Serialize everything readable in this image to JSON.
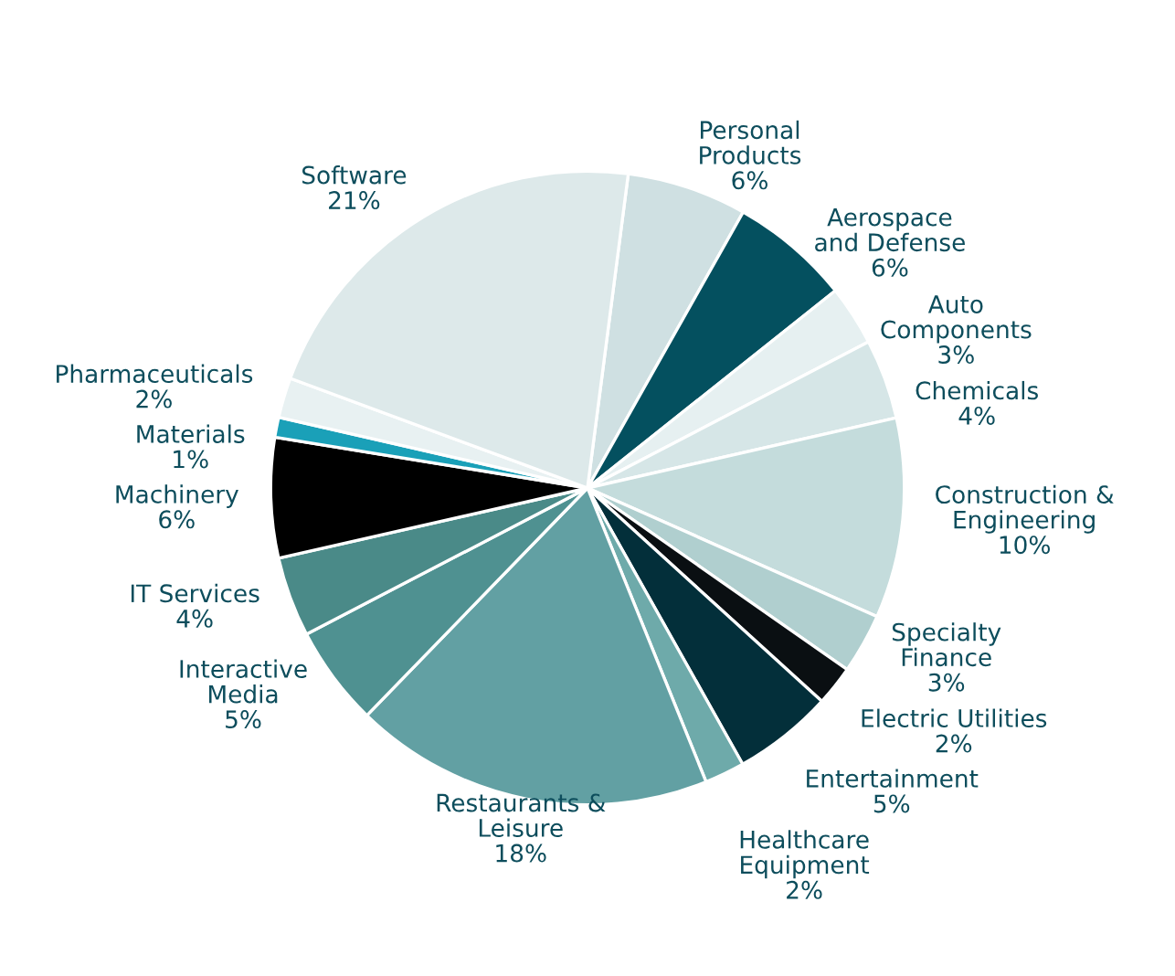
{
  "chart_data": {
    "type": "pie",
    "categories": [
      "Personal\nProducts",
      "Aerospace\nand Defense",
      "Auto\nComponents",
      "Chemicals",
      "Construction &\nEngineering",
      "Specialty\nFinance",
      "Electric Utilities",
      "Entertainment",
      "Healthcare\nEquipment",
      "Restaurants &\nLeisure",
      "Interactive\nMedia",
      "IT Services",
      "Machinery",
      "Materials",
      "Pharmaceuticals",
      "Software"
    ],
    "values": [
      6,
      6,
      3,
      4,
      10,
      3,
      2,
      5,
      2,
      18,
      5,
      4,
      6,
      1,
      2,
      21
    ],
    "value_labels": [
      "6%",
      "6%",
      "3%",
      "4%",
      "10%",
      "3%",
      "2%",
      "5%",
      "2%",
      "18%",
      "5%",
      "4%",
      "6%",
      "1%",
      "2%",
      "21%"
    ],
    "colors": [
      "#cfe0e2",
      "#04505f",
      "#e6f0f1",
      "#d6e6e7",
      "#c4dcdc",
      "#b0cfcf",
      "#0a0f12",
      "#032f3a",
      "#6eaaaa",
      "#62a0a3",
      "#4f9191",
      "#4a8a88",
      "#000000",
      "#1aa0b8",
      "#e8f1f2",
      "#dde9ea"
    ],
    "legend": false
  }
}
